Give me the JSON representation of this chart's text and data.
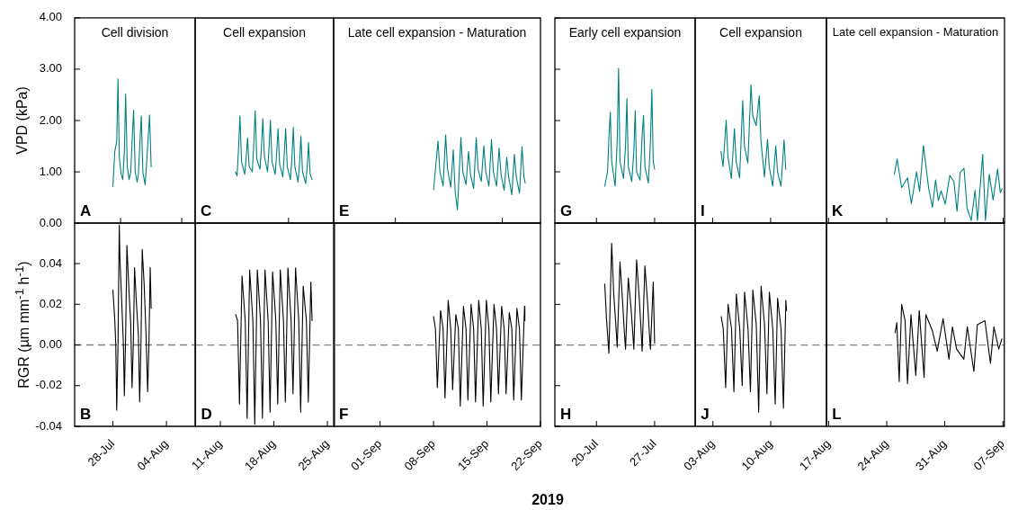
{
  "chart_data": [
    {
      "type": "line",
      "title": "Cell division",
      "annotations": [
        "A"
      ],
      "tick_labels": "y",
      "ylabel": "VPD (kPa)",
      "marker": "none",
      "xlim": [
        "2019-07-23",
        "2019-08-07T18:00"
      ],
      "xticks": [
        {
          "value": "2019-07-29",
          "label": null
        },
        {
          "value": "2019-08-06",
          "label": null
        }
      ],
      "ylim": [
        0,
        4
      ],
      "yticks": [
        {
          "value": 0,
          "label": "0.00"
        },
        {
          "value": 1,
          "label": "1.00"
        },
        {
          "value": 2,
          "label": "2.00"
        },
        {
          "value": 3,
          "label": "3.00"
        },
        {
          "value": 4,
          "label": "4.00"
        }
      ],
      "x": [
        "2019-07-28T00:00",
        "2019-07-28T06:00",
        "2019-07-28T12:00",
        "2019-07-28T16:00",
        "2019-07-28T20:00",
        "2019-07-29T02:00",
        "2019-07-29T07:00",
        "2019-07-29T12:00",
        "2019-07-29T16:00",
        "2019-07-29T21:00",
        "2019-07-30T03:00",
        "2019-07-30T08:00",
        "2019-07-30T13:00",
        "2019-07-30T17:00",
        "2019-07-30T22:00",
        "2019-07-31T04:00",
        "2019-07-31T08:00",
        "2019-07-31T13:00",
        "2019-07-31T17:00",
        "2019-07-31T22:00",
        "2019-08-01T05:00",
        "2019-08-01T10:00",
        "2019-08-01T15:00",
        "2019-08-01T19:00",
        "2019-08-02T00:00"
      ],
      "series": [
        {
          "color": "#008080",
          "values": [
            0.72,
            1.4,
            1.6,
            2.81,
            1.3,
            0.95,
            0.85,
            1.4,
            2.52,
            1.1,
            0.85,
            1.0,
            1.7,
            2.2,
            1.0,
            0.8,
            0.95,
            1.6,
            2.09,
            1.0,
            0.75,
            1.2,
            1.7,
            2.11,
            1.1
          ]
        }
      ]
    },
    {
      "type": "line",
      "title": "Cell expansion",
      "annotations": [
        "C"
      ],
      "tick_labels": false,
      "marker": "none",
      "xlim": [
        "2019-08-07T18:00",
        "2019-08-25T22:00"
      ],
      "xticks": [
        {
          "value": "2019-08-20",
          "label": null
        }
      ],
      "ylim": [
        0,
        4
      ],
      "yticks": [
        0,
        1,
        2,
        3,
        4
      ],
      "x": [
        "2019-08-13T01:00",
        "2019-08-13T06:00",
        "2019-08-13T11:00",
        "2019-08-13T15:00",
        "2019-08-13T20:00",
        "2019-08-14T06:00",
        "2019-08-14T11:00",
        "2019-08-14T15:00",
        "2019-08-14T20:00",
        "2019-08-15T06:00",
        "2019-08-15T11:00",
        "2019-08-15T15:00",
        "2019-08-15T20:00",
        "2019-08-16T06:00",
        "2019-08-16T11:00",
        "2019-08-16T15:00",
        "2019-08-16T20:00",
        "2019-08-17T06:00",
        "2019-08-17T11:00",
        "2019-08-17T15:00",
        "2019-08-17T20:00",
        "2019-08-18T06:00",
        "2019-08-18T11:00",
        "2019-08-18T15:00",
        "2019-08-18T20:00",
        "2019-08-19T06:00",
        "2019-08-19T11:00",
        "2019-08-19T15:00",
        "2019-08-19T20:00",
        "2019-08-20T06:00",
        "2019-08-20T11:00",
        "2019-08-20T15:00",
        "2019-08-20T20:00",
        "2019-08-21T06:00",
        "2019-08-21T11:00",
        "2019-08-21T15:00",
        "2019-08-21T20:00",
        "2019-08-22T06:00",
        "2019-08-22T11:00",
        "2019-08-22T15:00",
        "2019-08-22T20:00",
        "2019-08-23T02:00"
      ],
      "series": [
        {
          "color": "#008080",
          "values": [
            1.0,
            0.92,
            1.5,
            2.09,
            1.2,
            0.95,
            1.3,
            1.66,
            1.1,
            1.0,
            1.6,
            2.19,
            1.25,
            1.05,
            1.5,
            2.04,
            1.3,
            1.0,
            1.5,
            2.01,
            1.2,
            0.95,
            1.4,
            1.84,
            1.15,
            0.9,
            1.4,
            1.84,
            1.1,
            0.85,
            1.3,
            1.87,
            1.1,
            0.8,
            1.2,
            1.69,
            1.0,
            0.77,
            1.1,
            1.57,
            0.95,
            0.85
          ]
        }
      ]
    },
    {
      "type": "line",
      "title": "Late cell expansion - Maturation",
      "annotations": [
        "E"
      ],
      "tick_labels": false,
      "marker": "none",
      "xlim": [
        "2019-08-25T22:00",
        "2019-09-22"
      ],
      "xticks": [
        {
          "value": "2019-09-03",
          "label": null
        },
        {
          "value": "2019-09-17",
          "label": null
        }
      ],
      "ylim": [
        0,
        4
      ],
      "yticks": [
        0,
        1,
        2,
        3,
        4
      ],
      "x": [
        "2019-09-08T00:00",
        "2019-09-08T14:00",
        "2019-09-08T20:00",
        "2019-09-09T06:00",
        "2019-09-09T14:00",
        "2019-09-09T20:00",
        "2019-09-10T06:00",
        "2019-09-10T14:00",
        "2019-09-10T20:00",
        "2019-09-11T03:00",
        "2019-09-11T14:00",
        "2019-09-11T20:00",
        "2019-09-12T06:00",
        "2019-09-12T14:00",
        "2019-09-12T20:00",
        "2019-09-13T06:00",
        "2019-09-13T14:00",
        "2019-09-13T20:00",
        "2019-09-14T06:00",
        "2019-09-14T14:00",
        "2019-09-14T20:00",
        "2019-09-15T06:00",
        "2019-09-15T14:00",
        "2019-09-15T20:00",
        "2019-09-16T06:00",
        "2019-09-16T14:00",
        "2019-09-16T20:00",
        "2019-09-17T06:00",
        "2019-09-17T14:00",
        "2019-09-17T20:00",
        "2019-09-18T06:00",
        "2019-09-18T14:00",
        "2019-09-18T20:00",
        "2019-09-19T06:00",
        "2019-09-19T14:00",
        "2019-09-19T20:00",
        "2019-09-20T00:00"
      ],
      "series": [
        {
          "color": "#008080",
          "values": [
            0.65,
            1.6,
            1.0,
            0.72,
            1.72,
            1.05,
            0.7,
            1.43,
            0.6,
            0.26,
            1.67,
            1.0,
            0.75,
            1.4,
            0.95,
            0.67,
            1.66,
            1.05,
            0.81,
            1.51,
            1.0,
            0.72,
            1.63,
            1.0,
            0.72,
            1.46,
            0.95,
            0.64,
            1.28,
            0.9,
            0.55,
            1.34,
            0.9,
            0.58,
            1.49,
            0.9,
            0.78
          ]
        }
      ]
    },
    {
      "type": "line",
      "title": "Early cell expansion",
      "annotations": [
        "G"
      ],
      "tick_labels": false,
      "marker": "none",
      "xlim": [
        "2019-07-15",
        "2019-07-31T21:00"
      ],
      "xticks": [
        {
          "value": "2019-07-20",
          "label": null
        },
        {
          "value": "2019-07-27",
          "label": null
        }
      ],
      "ylim": [
        0,
        4
      ],
      "yticks": [
        0,
        1,
        2,
        3,
        4
      ],
      "x": [
        "2019-07-21T00:00",
        "2019-07-21T08:00",
        "2019-07-21T12:00",
        "2019-07-21T16:00",
        "2019-07-21T20:00",
        "2019-07-22T06:00",
        "2019-07-22T12:00",
        "2019-07-22T16:00",
        "2019-07-22T20:00",
        "2019-07-23T06:00",
        "2019-07-23T12:00",
        "2019-07-23T16:00",
        "2019-07-23T20:00",
        "2019-07-24T06:00",
        "2019-07-24T12:00",
        "2019-07-24T16:00",
        "2019-07-24T20:00",
        "2019-07-25T06:00",
        "2019-07-25T12:00",
        "2019-07-25T16:00",
        "2019-07-25T20:00",
        "2019-07-26T06:00",
        "2019-07-26T12:00",
        "2019-07-26T16:00",
        "2019-07-26T20:00",
        "2019-07-27T00:00"
      ],
      "series": [
        {
          "color": "#008080",
          "values": [
            0.72,
            1.0,
            1.65,
            2.16,
            1.2,
            0.72,
            1.6,
            3.02,
            1.2,
            0.87,
            1.5,
            2.43,
            1.1,
            0.81,
            1.4,
            2.19,
            1.0,
            0.84,
            1.7,
            2.1,
            1.1,
            0.78,
            1.6,
            2.61,
            1.2,
            1.05
          ]
        }
      ]
    },
    {
      "type": "line",
      "title": "Cell expansion",
      "annotations": [
        "I"
      ],
      "tick_labels": false,
      "marker": "none",
      "xlim": [
        "2019-07-31T21:00",
        "2019-08-16T18:00"
      ],
      "xticks": [
        {
          "value": "2019-08-03",
          "label": null
        },
        {
          "value": "2019-08-10",
          "label": null
        }
      ],
      "ylim": [
        0,
        4
      ],
      "yticks": [
        0,
        1,
        2,
        3,
        4
      ],
      "x": [
        "2019-08-04T00:00",
        "2019-08-04T06:00",
        "2019-08-04T15:00",
        "2019-08-04T20:00",
        "2019-08-05T06:00",
        "2019-08-05T15:00",
        "2019-08-05T20:00",
        "2019-08-06T06:00",
        "2019-08-06T15:00",
        "2019-08-06T20:00",
        "2019-08-07T06:00",
        "2019-08-07T12:00",
        "2019-08-07T15:00",
        "2019-08-07T20:00",
        "2019-08-08T06:00",
        "2019-08-08T15:00",
        "2019-08-08T20:00",
        "2019-08-09T06:00",
        "2019-08-09T15:00",
        "2019-08-09T20:00",
        "2019-08-10T06:00",
        "2019-08-10T15:00",
        "2019-08-10T20:00",
        "2019-08-11T06:00",
        "2019-08-11T15:00",
        "2019-08-11T20:00"
      ],
      "series": [
        {
          "color": "#008080",
          "values": [
            1.4,
            1.1,
            2.01,
            1.3,
            0.87,
            1.84,
            1.2,
            0.88,
            2.39,
            1.5,
            1.17,
            2.2,
            2.7,
            2.1,
            1.9,
            2.48,
            1.6,
            0.9,
            1.63,
            1.1,
            0.72,
            1.51,
            1.0,
            0.72,
            1.62,
            1.05
          ]
        }
      ]
    },
    {
      "type": "line",
      "title": "Late cell expansion - Maturation",
      "annotations": [
        "K"
      ],
      "tick_labels": false,
      "marker": "none",
      "xlim": [
        "2019-08-16T18:00",
        "2019-09-07T04:00"
      ],
      "xticks": [
        {
          "value": "2019-08-17",
          "label": null
        },
        {
          "value": "2019-08-24",
          "label": null
        },
        {
          "value": "2019-08-31",
          "label": null
        },
        {
          "value": "2019-09-07",
          "label": null
        }
      ],
      "ylim": [
        0,
        4
      ],
      "yticks": [
        0,
        1,
        2,
        3,
        4
      ],
      "x": [
        "2019-08-24T22:00",
        "2019-08-25T06:00",
        "2019-08-25T19:00",
        "2019-08-26T12:00",
        "2019-08-26T23:00",
        "2019-08-27T14:00",
        "2019-08-27T23:00",
        "2019-08-28T10:00",
        "2019-08-29T01:00",
        "2019-08-29T12:00",
        "2019-08-29T21:00",
        "2019-08-30T05:00",
        "2019-08-30T13:00",
        "2019-08-31T01:00",
        "2019-08-31T14:00",
        "2019-09-01T02:00",
        "2019-09-01T11:00",
        "2019-09-01T20:00",
        "2019-09-02T07:00",
        "2019-09-02T16:00",
        "2019-09-03T04:00",
        "2019-09-03T15:00",
        "2019-09-03T22:00",
        "2019-09-04T13:00",
        "2019-09-04T21:00",
        "2019-09-05T08:00",
        "2019-09-05T19:00",
        "2019-09-06T08:00",
        "2019-09-06T16:00",
        "2019-09-06T21:00"
      ],
      "series": [
        {
          "color": "#008080",
          "values": [
            0.95,
            1.25,
            0.69,
            0.88,
            0.38,
            1.0,
            0.62,
            1.51,
            0.68,
            0.31,
            0.84,
            0.44,
            0.63,
            0.37,
            0.93,
            0.81,
            0.23,
            0.99,
            1.07,
            0.29,
            0.05,
            0.64,
            0.05,
            1.34,
            0.05,
            0.95,
            0.45,
            1.05,
            0.59,
            0.67
          ]
        }
      ]
    },
    {
      "type": "line",
      "annotations": [
        "B"
      ],
      "ylabel": "RGR (µm mm$^{-1}$ h$^{-1}$)",
      "marker": "none",
      "xlim": [
        "2019-07-23",
        "2019-08-07T18:00"
      ],
      "xticks": [
        {
          "value": "2019-07-28",
          "label": "28-Jul"
        },
        {
          "value": "2019-08-04",
          "label": "04-Aug"
        }
      ],
      "ylim": [
        -0.04,
        0.06
      ],
      "yticks": [
        {
          "value": -0.04,
          "label": "-0.04"
        },
        {
          "value": -0.02,
          "label": "-0.02"
        },
        {
          "value": 0,
          "label": "0.00"
        },
        {
          "value": 0.02,
          "label": "0.02"
        },
        {
          "value": 0.04,
          "label": "0.04"
        }
      ],
      "ref_lines": [
        {
          "axis": "y",
          "value": 0,
          "color": "#808080",
          "line_style": "dashed"
        }
      ],
      "x": [
        "2019-07-28T00:00",
        "2019-07-28T06:00",
        "2019-07-28T09:00",
        "2019-07-28T12:00",
        "2019-07-28T16:00",
        "2019-07-28T20:00",
        "2019-07-28T22:00",
        "2019-07-29T04:00",
        "2019-07-29T09:00",
        "2019-07-29T12:00",
        "2019-07-29T16:00",
        "2019-07-29T20:00",
        "2019-07-30T02:00",
        "2019-07-30T08:00",
        "2019-07-30T12:00",
        "2019-07-30T16:00",
        "2019-07-30T20:00",
        "2019-07-31T02:00",
        "2019-07-31T08:00",
        "2019-07-31T12:00",
        "2019-07-31T16:00",
        "2019-07-31T20:00",
        "2019-08-01T02:00",
        "2019-08-01T08:00",
        "2019-08-01T13:00",
        "2019-08-01T17:00",
        "2019-08-01T21:00",
        "2019-08-02T00:00"
      ],
      "series": [
        {
          "color": "#000000",
          "values": [
            0.027,
            0.012,
            0.0,
            -0.032,
            0.0,
            0.059,
            0.043,
            0.02,
            0.0,
            -0.025,
            0.005,
            0.049,
            0.028,
            0.01,
            -0.021,
            0.0,
            0.038,
            0.02,
            0.005,
            -0.028,
            0.0,
            0.047,
            0.03,
            0.005,
            -0.023,
            0.0,
            0.038,
            0.018
          ]
        }
      ]
    },
    {
      "type": "line",
      "annotations": [
        "D"
      ],
      "tick_labels": "x",
      "marker": "none",
      "xlim": [
        "2019-08-07T18:00",
        "2019-08-25T22:00"
      ],
      "xticks": [
        {
          "value": "2019-08-11",
          "label": "11-Aug"
        },
        {
          "value": "2019-08-18",
          "label": "18-Aug"
        },
        {
          "value": "2019-08-25",
          "label": "25-Aug"
        }
      ],
      "ylim": [
        -0.04,
        0.06
      ],
      "yticks": [
        -0.04,
        -0.02,
        0,
        0.02,
        0.04
      ],
      "ref_lines": [
        {
          "axis": "y",
          "value": 0,
          "color": "#808080",
          "line_style": "dashed"
        }
      ],
      "x": [
        "2019-08-13T00:00",
        "2019-08-13T06:00",
        "2019-08-13T12:00",
        "2019-08-13T20:00",
        "2019-08-14T06:00",
        "2019-08-14T12:00",
        "2019-08-14T20:00",
        "2019-08-15T06:00",
        "2019-08-15T12:00",
        "2019-08-15T20:00",
        "2019-08-16T06:00",
        "2019-08-16T12:00",
        "2019-08-16T20:00",
        "2019-08-17T06:00",
        "2019-08-17T12:00",
        "2019-08-17T20:00",
        "2019-08-18T06:00",
        "2019-08-18T12:00",
        "2019-08-18T20:00",
        "2019-08-19T06:00",
        "2019-08-19T12:00",
        "2019-08-19T20:00",
        "2019-08-20T06:00",
        "2019-08-20T12:00",
        "2019-08-20T20:00",
        "2019-08-21T06:00",
        "2019-08-21T12:00",
        "2019-08-21T20:00",
        "2019-08-22T06:00",
        "2019-08-22T12:00",
        "2019-08-22T20:00",
        "2019-08-23T00:00"
      ],
      "series": [
        {
          "color": "#000000",
          "values": [
            0.015,
            0.012,
            -0.029,
            0.034,
            0.012,
            -0.036,
            0.037,
            0.012,
            -0.039,
            0.037,
            0.012,
            -0.036,
            0.037,
            0.012,
            -0.033,
            0.036,
            0.012,
            -0.029,
            0.037,
            0.012,
            -0.028,
            0.038,
            0.012,
            -0.024,
            0.038,
            0.012,
            -0.033,
            0.029,
            0.012,
            -0.028,
            0.031,
            0.012
          ]
        }
      ]
    },
    {
      "type": "line",
      "annotations": [
        "F"
      ],
      "xlabel": "2019",
      "tick_labels": "x",
      "marker": "none",
      "xlim": [
        "2019-08-25T22:00",
        "2019-09-22"
      ],
      "xticks": [
        {
          "value": "2019-09-01",
          "label": "01-Sep"
        },
        {
          "value": "2019-09-08",
          "label": "08-Sep"
        },
        {
          "value": "2019-09-15",
          "label": "15-Sep"
        },
        {
          "value": "2019-09-22",
          "label": "22-Sep"
        }
      ],
      "ylim": [
        -0.04,
        0.06
      ],
      "yticks": [
        -0.04,
        -0.02,
        0,
        0.02,
        0.04
      ],
      "ref_lines": [
        {
          "axis": "y",
          "value": 0,
          "color": "#808080",
          "line_style": "dashed"
        }
      ],
      "x": [
        "2019-09-08T00:00",
        "2019-09-08T06:00",
        "2019-09-08T12:00",
        "2019-09-08T22:00",
        "2019-09-09T06:00",
        "2019-09-09T12:00",
        "2019-09-09T22:00",
        "2019-09-10T06:00",
        "2019-09-10T12:00",
        "2019-09-10T22:00",
        "2019-09-11T06:00",
        "2019-09-11T12:00",
        "2019-09-11T22:00",
        "2019-09-12T06:00",
        "2019-09-12T12:00",
        "2019-09-12T22:00",
        "2019-09-13T06:00",
        "2019-09-13T12:00",
        "2019-09-13T22:00",
        "2019-09-14T06:00",
        "2019-09-14T12:00",
        "2019-09-14T22:00",
        "2019-09-15T06:00",
        "2019-09-15T12:00",
        "2019-09-15T22:00",
        "2019-09-16T06:00",
        "2019-09-16T12:00",
        "2019-09-16T22:00",
        "2019-09-17T06:00",
        "2019-09-17T12:00",
        "2019-09-17T22:00",
        "2019-09-18T06:00",
        "2019-09-18T12:00",
        "2019-09-18T22:00",
        "2019-09-19T06:00",
        "2019-09-19T12:00",
        "2019-09-19T22:00",
        "2019-09-19T23:00"
      ],
      "series": [
        {
          "color": "#000000",
          "values": [
            0.014,
            0.008,
            -0.021,
            0.017,
            0.008,
            -0.026,
            0.022,
            0.008,
            -0.022,
            0.015,
            0.008,
            -0.03,
            0.019,
            0.008,
            -0.027,
            0.02,
            0.008,
            -0.028,
            0.022,
            0.008,
            -0.03,
            0.022,
            0.008,
            -0.028,
            0.02,
            0.008,
            -0.024,
            0.019,
            0.008,
            -0.024,
            0.016,
            0.008,
            -0.027,
            0.018,
            0.008,
            -0.027,
            0.019,
            0.012
          ]
        }
      ]
    },
    {
      "type": "line",
      "annotations": [
        "H"
      ],
      "tick_labels": "x",
      "marker": "none",
      "xlim": [
        "2019-07-15",
        "2019-07-31T21:00"
      ],
      "xticks": [
        {
          "value": "2019-07-20",
          "label": "20-Jul"
        },
        {
          "value": "2019-07-27",
          "label": "27-Jul"
        }
      ],
      "ylim": [
        -0.04,
        0.06
      ],
      "yticks": [
        -0.04,
        -0.02,
        0,
        0.02,
        0.04
      ],
      "ref_lines": [
        {
          "axis": "y",
          "value": 0,
          "color": "#808080",
          "line_style": "dashed"
        }
      ],
      "x": [
        "2019-07-21T00:00",
        "2019-07-21T05:00",
        "2019-07-21T12:00",
        "2019-07-21T20:00",
        "2019-07-22T02:00",
        "2019-07-22T08:00",
        "2019-07-22T12:00",
        "2019-07-22T20:00",
        "2019-07-23T04:00",
        "2019-07-23T08:00",
        "2019-07-23T12:00",
        "2019-07-23T20:00",
        "2019-07-24T04:00",
        "2019-07-24T08:00",
        "2019-07-24T12:00",
        "2019-07-24T20:00",
        "2019-07-25T04:00",
        "2019-07-25T08:00",
        "2019-07-25T12:00",
        "2019-07-25T20:00",
        "2019-07-26T04:00",
        "2019-07-26T08:00",
        "2019-07-26T12:00",
        "2019-07-26T20:00",
        "2019-07-27T00:00"
      ],
      "series": [
        {
          "color": "#000000",
          "values": [
            0.03,
            0.013,
            -0.004,
            0.05,
            0.025,
            0.01,
            -0.001,
            0.041,
            0.02,
            0.008,
            -0.002,
            0.033,
            0.018,
            0.008,
            -0.002,
            0.042,
            0.022,
            0.01,
            -0.003,
            0.039,
            0.02,
            0.008,
            -0.002,
            0.031,
            0.001
          ]
        }
      ]
    },
    {
      "type": "line",
      "annotations": [
        "J"
      ],
      "tick_labels": "x",
      "marker": "none",
      "xlim": [
        "2019-07-31T21:00",
        "2019-08-16T18:00"
      ],
      "xticks": [
        {
          "value": "2019-08-03",
          "label": "03-Aug"
        },
        {
          "value": "2019-08-10",
          "label": "10-Aug"
        }
      ],
      "ylim": [
        -0.04,
        0.06
      ],
      "yticks": [
        -0.04,
        -0.02,
        0,
        0.02,
        0.04
      ],
      "ref_lines": [
        {
          "axis": "y",
          "value": 0,
          "color": "#808080",
          "line_style": "dashed"
        }
      ],
      "x": [
        "2019-08-04T00:00",
        "2019-08-04T06:00",
        "2019-08-04T13:00",
        "2019-08-04T20:00",
        "2019-08-05T06:00",
        "2019-08-05T13:00",
        "2019-08-05T20:00",
        "2019-08-06T06:00",
        "2019-08-06T13:00",
        "2019-08-06T20:00",
        "2019-08-07T06:00",
        "2019-08-07T13:00",
        "2019-08-07T20:00",
        "2019-08-08T06:00",
        "2019-08-08T13:00",
        "2019-08-08T20:00",
        "2019-08-09T06:00",
        "2019-08-09T13:00",
        "2019-08-09T20:00",
        "2019-08-10T06:00",
        "2019-08-10T13:00",
        "2019-08-10T20:00",
        "2019-08-11T06:00",
        "2019-08-11T13:00",
        "2019-08-11T20:00",
        "2019-08-11T22:00"
      ],
      "series": [
        {
          "color": "#000000",
          "values": [
            0.014,
            0.008,
            -0.021,
            0.02,
            0.008,
            -0.023,
            0.025,
            0.008,
            -0.02,
            0.026,
            0.008,
            -0.023,
            0.027,
            0.01,
            -0.033,
            0.029,
            0.01,
            -0.024,
            0.026,
            0.008,
            -0.029,
            0.023,
            0.008,
            -0.031,
            0.022,
            0.017
          ]
        }
      ]
    },
    {
      "type": "line",
      "annotations": [
        "L"
      ],
      "tick_labels": "x",
      "marker": "none",
      "xlim": [
        "2019-08-16T18:00",
        "2019-09-07T04:00"
      ],
      "xticks": [
        {
          "value": "2019-08-17",
          "label": "17-Aug"
        },
        {
          "value": "2019-08-24",
          "label": "24-Aug"
        },
        {
          "value": "2019-08-31",
          "label": "31-Aug"
        },
        {
          "value": "2019-09-07",
          "label": "07-Sep"
        }
      ],
      "ylim": [
        -0.04,
        0.06
      ],
      "yticks": [
        -0.04,
        -0.02,
        0,
        0.02,
        0.04
      ],
      "ref_lines": [
        {
          "axis": "y",
          "value": 0,
          "color": "#808080",
          "line_style": "dashed"
        }
      ],
      "x": [
        "2019-08-25T00:00",
        "2019-08-25T05:00",
        "2019-08-25T12:00",
        "2019-08-25T19:00",
        "2019-08-26T05:00",
        "2019-08-26T12:00",
        "2019-08-26T22:00",
        "2019-08-27T12:00",
        "2019-08-27T22:00",
        "2019-08-28T12:00",
        "2019-08-28T17:00",
        "2019-08-29T12:00",
        "2019-08-30T02:00",
        "2019-08-30T19:00",
        "2019-08-31T12:00",
        "2019-08-31T22:00",
        "2019-09-01T10:00",
        "2019-09-02T07:00",
        "2019-09-02T17:00",
        "2019-09-03T12:00",
        "2019-09-03T22:00",
        "2019-09-04T20:00",
        "2019-09-05T12:00",
        "2019-09-05T22:00",
        "2019-09-06T12:00",
        "2019-09-06T21:00"
      ],
      "series": [
        {
          "color": "#000000",
          "values": [
            0.006,
            0.011,
            -0.018,
            0.02,
            0.012,
            -0.019,
            0.015,
            -0.015,
            0.017,
            -0.016,
            0.015,
            0.007,
            -0.003,
            0.013,
            -0.007,
            0.009,
            -0.002,
            -0.007,
            0.009,
            -0.013,
            0.01,
            0.012,
            -0.009,
            0.009,
            -0.002,
            0.003
          ]
        }
      ]
    }
  ]
}
